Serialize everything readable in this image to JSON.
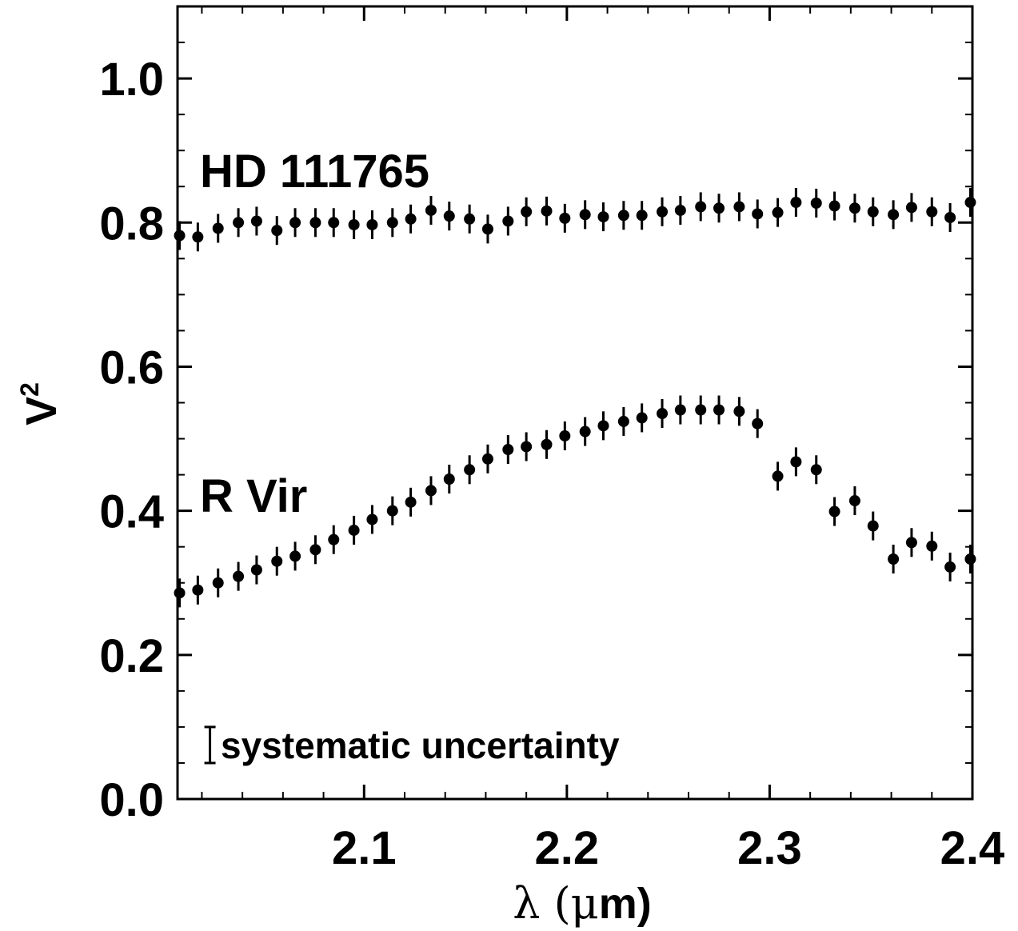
{
  "chart_data": {
    "type": "scatter",
    "xlabel_symbol": "λ",
    "xlabel_unit_open": " (",
    "xlabel_unit_mu": "μ",
    "xlabel_unit_rest": "m)",
    "ylabel_base": "V",
    "ylabel_sup": "2",
    "xlim": [
      2.008,
      2.4
    ],
    "ylim": [
      0.0,
      1.1
    ],
    "x_ticks": [
      2.1,
      2.2,
      2.3,
      2.4
    ],
    "x_tick_labels": [
      "2.1",
      "2.2",
      "2.3",
      "2.4"
    ],
    "y_ticks": [
      0.0,
      0.2,
      0.4,
      0.6,
      0.8,
      1.0
    ],
    "y_tick_labels": [
      "0.0",
      "0.2",
      "0.4",
      "0.6",
      "0.8",
      "1.0"
    ],
    "x_minor_step": 0.02,
    "y_minor_step": 0.05,
    "annotations": {
      "hd_label": "HD 111765",
      "rvir_label": "R Vir",
      "systematic_label": "systematic uncertainty",
      "systematic_bar": {
        "x": 2.024,
        "y_low": 0.05,
        "y_high": 0.1
      }
    },
    "series": [
      {
        "points": [
          [
            2.009,
            0.782,
            0.02
          ],
          [
            2.018,
            0.78,
            0.02
          ],
          [
            2.028,
            0.792,
            0.02
          ],
          [
            2.038,
            0.8,
            0.02
          ],
          [
            2.047,
            0.802,
            0.02
          ],
          [
            2.057,
            0.789,
            0.02
          ],
          [
            2.066,
            0.8,
            0.02
          ],
          [
            2.076,
            0.8,
            0.02
          ],
          [
            2.085,
            0.8,
            0.02
          ],
          [
            2.095,
            0.797,
            0.02
          ],
          [
            2.104,
            0.797,
            0.02
          ],
          [
            2.114,
            0.8,
            0.02
          ],
          [
            2.123,
            0.805,
            0.02
          ],
          [
            2.133,
            0.817,
            0.02
          ],
          [
            2.142,
            0.809,
            0.02
          ],
          [
            2.152,
            0.805,
            0.02
          ],
          [
            2.161,
            0.791,
            0.02
          ],
          [
            2.171,
            0.802,
            0.02
          ],
          [
            2.18,
            0.815,
            0.02
          ],
          [
            2.19,
            0.816,
            0.02
          ],
          [
            2.199,
            0.806,
            0.02
          ],
          [
            2.209,
            0.811,
            0.02
          ],
          [
            2.218,
            0.808,
            0.02
          ],
          [
            2.228,
            0.81,
            0.02
          ],
          [
            2.237,
            0.81,
            0.02
          ],
          [
            2.247,
            0.815,
            0.02
          ],
          [
            2.256,
            0.817,
            0.02
          ],
          [
            2.266,
            0.822,
            0.02
          ],
          [
            2.275,
            0.82,
            0.02
          ],
          [
            2.285,
            0.822,
            0.02
          ],
          [
            2.294,
            0.812,
            0.02
          ],
          [
            2.304,
            0.814,
            0.02
          ],
          [
            2.313,
            0.828,
            0.02
          ],
          [
            2.323,
            0.827,
            0.02
          ],
          [
            2.332,
            0.823,
            0.02
          ],
          [
            2.342,
            0.82,
            0.02
          ],
          [
            2.351,
            0.815,
            0.02
          ],
          [
            2.361,
            0.811,
            0.02
          ],
          [
            2.37,
            0.821,
            0.02
          ],
          [
            2.38,
            0.815,
            0.02
          ],
          [
            2.389,
            0.807,
            0.02
          ],
          [
            2.399,
            0.828,
            0.02
          ]
        ]
      },
      {
        "points": [
          [
            2.009,
            0.286,
            0.02
          ],
          [
            2.018,
            0.29,
            0.02
          ],
          [
            2.028,
            0.3,
            0.02
          ],
          [
            2.038,
            0.309,
            0.02
          ],
          [
            2.047,
            0.318,
            0.02
          ],
          [
            2.057,
            0.33,
            0.02
          ],
          [
            2.066,
            0.337,
            0.02
          ],
          [
            2.076,
            0.346,
            0.02
          ],
          [
            2.085,
            0.36,
            0.02
          ],
          [
            2.095,
            0.373,
            0.02
          ],
          [
            2.104,
            0.388,
            0.02
          ],
          [
            2.114,
            0.4,
            0.02
          ],
          [
            2.123,
            0.412,
            0.02
          ],
          [
            2.133,
            0.428,
            0.02
          ],
          [
            2.142,
            0.444,
            0.02
          ],
          [
            2.152,
            0.457,
            0.02
          ],
          [
            2.161,
            0.472,
            0.02
          ],
          [
            2.171,
            0.485,
            0.02
          ],
          [
            2.18,
            0.489,
            0.02
          ],
          [
            2.19,
            0.492,
            0.02
          ],
          [
            2.199,
            0.504,
            0.02
          ],
          [
            2.209,
            0.51,
            0.02
          ],
          [
            2.218,
            0.518,
            0.02
          ],
          [
            2.228,
            0.524,
            0.02
          ],
          [
            2.237,
            0.529,
            0.02
          ],
          [
            2.247,
            0.535,
            0.02
          ],
          [
            2.256,
            0.54,
            0.02
          ],
          [
            2.266,
            0.54,
            0.02
          ],
          [
            2.275,
            0.54,
            0.02
          ],
          [
            2.285,
            0.538,
            0.02
          ],
          [
            2.294,
            0.521,
            0.02
          ],
          [
            2.304,
            0.448,
            0.02
          ],
          [
            2.313,
            0.468,
            0.02
          ],
          [
            2.323,
            0.457,
            0.02
          ],
          [
            2.332,
            0.399,
            0.02
          ],
          [
            2.342,
            0.414,
            0.02
          ],
          [
            2.351,
            0.379,
            0.02
          ],
          [
            2.361,
            0.333,
            0.02
          ],
          [
            2.37,
            0.356,
            0.02
          ],
          [
            2.38,
            0.351,
            0.02
          ],
          [
            2.389,
            0.322,
            0.02
          ],
          [
            2.399,
            0.333,
            0.02
          ]
        ]
      }
    ]
  }
}
